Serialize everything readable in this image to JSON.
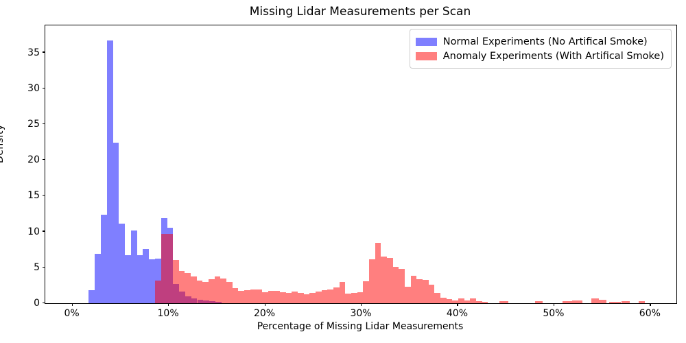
{
  "chart_data": {
    "type": "bar",
    "subtype": "overlapping-histogram",
    "title": "Missing Lidar Measurements per Scan",
    "xlabel": "Percentage of Missing Lidar Measurements",
    "ylabel": "Density",
    "grid": false,
    "legend_position": "upper right",
    "xlim_pct": [
      -2.75,
      62.75
    ],
    "ylim_density": [
      0,
      38.8
    ],
    "x_ticks": [
      {
        "value": 0,
        "label": "0%"
      },
      {
        "value": 10,
        "label": "10%"
      },
      {
        "value": 20,
        "label": "20%"
      },
      {
        "value": 30,
        "label": "30%"
      },
      {
        "value": 40,
        "label": "40%"
      },
      {
        "value": 50,
        "label": "50%"
      },
      {
        "value": 60,
        "label": "60%"
      }
    ],
    "y_ticks": [
      {
        "value": 0,
        "label": "0"
      },
      {
        "value": 5,
        "label": "5"
      },
      {
        "value": 10,
        "label": "10"
      },
      {
        "value": 15,
        "label": "15"
      },
      {
        "value": 20,
        "label": "20"
      },
      {
        "value": 25,
        "label": "25"
      },
      {
        "value": 30,
        "label": "30"
      },
      {
        "value": 35,
        "label": "35"
      }
    ],
    "series": [
      {
        "name": "Normal Experiments (No Artifical Smoke)",
        "color": "rgba(0,0,255,0.5)",
        "bin_start_pct": 1.77,
        "bin_width_pct": 0.625,
        "densities": [
          1.8,
          6.9,
          12.4,
          36.7,
          22.4,
          11.1,
          6.7,
          10.2,
          6.7,
          7.6,
          6.1,
          6.2,
          11.9,
          10.5,
          2.7,
          1.65,
          0.95,
          0.65,
          0.45,
          0.35,
          0.25,
          0.15
        ]
      },
      {
        "name": "Anomaly Experiments (With Artifical Smoke)",
        "color": "rgba(255,0,0,0.5)",
        "bin_start_pct": 8.65,
        "bin_width_pct": 0.617,
        "densities": [
          3.2,
          9.7,
          9.7,
          6.0,
          4.5,
          4.2,
          3.7,
          3.2,
          3.0,
          3.35,
          3.7,
          3.45,
          3.0,
          2.1,
          1.75,
          1.85,
          1.95,
          1.9,
          1.5,
          1.7,
          1.7,
          1.55,
          1.4,
          1.6,
          1.4,
          1.2,
          1.4,
          1.6,
          1.85,
          1.95,
          2.2,
          3.0,
          1.3,
          1.4,
          1.5,
          3.1,
          6.1,
          8.4,
          6.5,
          6.3,
          5.05,
          4.8,
          2.3,
          3.8,
          3.4,
          3.3,
          2.6,
          1.4,
          0.8,
          0.6,
          0.4,
          0.64,
          0.4,
          0.67,
          0.25,
          0.15
        ],
        "sparse_tail_bars": [
          {
            "x_pct": 44.4,
            "width_pct": 0.9,
            "density": 0.25
          },
          {
            "x_pct": 48.1,
            "width_pct": 0.8,
            "density": 0.25
          },
          {
            "x_pct": 50.9,
            "width_pct": 1.0,
            "density": 0.3
          },
          {
            "x_pct": 51.9,
            "width_pct": 1.1,
            "density": 0.35
          },
          {
            "x_pct": 53.95,
            "width_pct": 0.75,
            "density": 0.65
          },
          {
            "x_pct": 54.7,
            "width_pct": 0.8,
            "density": 0.45
          },
          {
            "x_pct": 55.8,
            "width_pct": 1.2,
            "density": 0.15
          },
          {
            "x_pct": 57.05,
            "width_pct": 0.85,
            "density": 0.3
          },
          {
            "x_pct": 58.85,
            "width_pct": 0.65,
            "density": 0.3
          }
        ]
      }
    ]
  },
  "legend": {
    "items": [
      {
        "label": "Normal Experiments (No Artifical Smoke)"
      },
      {
        "label": "Anomaly Experiments (With Artifical Smoke)"
      }
    ]
  }
}
